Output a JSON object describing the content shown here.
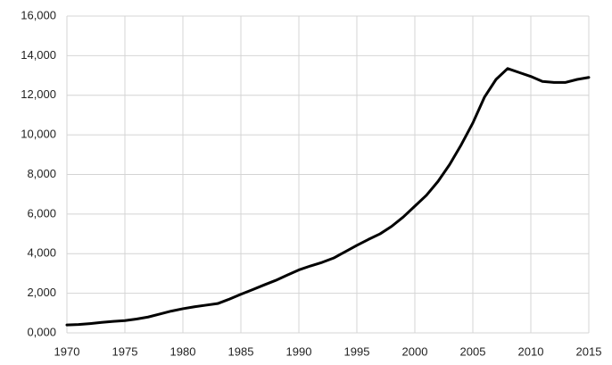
{
  "chart_data": {
    "type": "line",
    "x": [
      1970,
      1971,
      1972,
      1973,
      1974,
      1975,
      1976,
      1977,
      1978,
      1979,
      1980,
      1981,
      1982,
      1983,
      1984,
      1985,
      1986,
      1987,
      1988,
      1989,
      1990,
      1991,
      1992,
      1993,
      1994,
      1995,
      1996,
      1997,
      1998,
      1999,
      2000,
      2001,
      2002,
      2003,
      2004,
      2005,
      2006,
      2007,
      2008,
      2009,
      2010,
      2011,
      2012,
      2013,
      2014,
      2015
    ],
    "series": [
      {
        "color": "#000000",
        "values": [
          400,
          420,
          470,
          530,
          580,
          620,
          700,
          800,
          950,
          1100,
          1220,
          1320,
          1400,
          1480,
          1700,
          1950,
          2180,
          2420,
          2650,
          2920,
          3180,
          3380,
          3560,
          3780,
          4100,
          4420,
          4720,
          5000,
          5380,
          5850,
          6400,
          6950,
          7650,
          8500,
          9500,
          10600,
          11900,
          12800,
          13350,
          13150,
          12950,
          12700,
          12650,
          12650,
          12800,
          12900
        ]
      }
    ],
    "xlim": [
      1970,
      2015
    ],
    "xticks": [
      1970,
      1975,
      1980,
      1985,
      1990,
      1995,
      2000,
      2005,
      2010,
      2015
    ],
    "ylim": [
      0,
      16000
    ],
    "yticks": [
      {
        "value": 0,
        "label": "0,000"
      },
      {
        "value": 2000,
        "label": "2,000"
      },
      {
        "value": 4000,
        "label": "4,000"
      },
      {
        "value": 6000,
        "label": "6,000"
      },
      {
        "value": 8000,
        "label": "8,000"
      },
      {
        "value": 10000,
        "label": "10,000"
      },
      {
        "value": 12000,
        "label": "12,000"
      },
      {
        "value": 14000,
        "label": "14,000"
      },
      {
        "value": 16000,
        "label": "16,000"
      }
    ],
    "grid": true
  }
}
